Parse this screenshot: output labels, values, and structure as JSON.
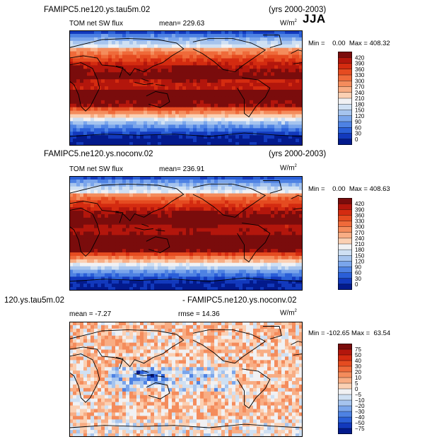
{
  "season": "JJA",
  "chart_data": [
    {
      "type": "heatmap",
      "case_title": "FAMIPC5.ne120.ys.tau5m.02",
      "years": "(yrs 2000-2003)",
      "variable": "TOM net SW flux",
      "stats_text": "mean=  229.63",
      "units_base": "W/m",
      "units_exp": "2",
      "min_label": "Min =",
      "min_value": "0.00",
      "max_label": "Max =",
      "max_value": "408.32",
      "colorbar": {
        "levels": [
          "420",
          "390",
          "360",
          "330",
          "300",
          "270",
          "240",
          "210",
          "180",
          "150",
          "120",
          "90",
          "60",
          "30",
          "0"
        ],
        "colors": [
          "#7a0c0c",
          "#b3160c",
          "#d42b10",
          "#e54b20",
          "#ef6a3a",
          "#f48c5c",
          "#f8ad84",
          "#fbd0b3",
          "#f1f1f3",
          "#cfe0f3",
          "#a6c4ee",
          "#7aa5eb",
          "#4e82e3",
          "#2a5fd8",
          "#1239bd",
          "#031a8c"
        ]
      }
    },
    {
      "type": "heatmap",
      "case_title": "FAMIPC5.ne120.ys.noconv.02",
      "years": "(yrs 2000-2003)",
      "variable": "TOM net SW flux",
      "stats_text": "mean=  236.91",
      "units_base": "W/m",
      "units_exp": "2",
      "min_label": "Min =",
      "min_value": "0.00",
      "max_label": "Max =",
      "max_value": "408.63",
      "colorbar": {
        "levels": [
          "420",
          "390",
          "360",
          "330",
          "300",
          "270",
          "240",
          "210",
          "180",
          "150",
          "120",
          "90",
          "60",
          "30",
          "0"
        ],
        "colors": [
          "#7a0c0c",
          "#b3160c",
          "#d42b10",
          "#e54b20",
          "#ef6a3a",
          "#f48c5c",
          "#f8ad84",
          "#fbd0b3",
          "#f1f1f3",
          "#cfe0f3",
          "#a6c4ee",
          "#7aa5eb",
          "#4e82e3",
          "#2a5fd8",
          "#1239bd",
          "#031a8c"
        ]
      }
    },
    {
      "type": "heatmap",
      "case_title_left": "120.ys.tau5m.02",
      "case_title_right": "- FAMIPC5.ne120.ys.noconv.02",
      "stats_text": "mean =  -7.27",
      "rmse_text": "rmse =  14.36",
      "units_base": "W/m",
      "units_exp": "2",
      "min_label": "Min =",
      "min_value": "-102.65",
      "max_label": "Max =",
      "max_value": "63.54",
      "colorbar": {
        "levels": [
          "75",
          "50",
          "40",
          "30",
          "20",
          "10",
          "5",
          "0",
          "−5",
          "−10",
          "−20",
          "−30",
          "−40",
          "−50",
          "−75"
        ],
        "colors": [
          "#7a0c0c",
          "#b3160c",
          "#d42b10",
          "#e54b20",
          "#ef6a3a",
          "#f48c5c",
          "#f8ad84",
          "#fbd0b3",
          "#f1f1f3",
          "#cfe0f3",
          "#a6c4ee",
          "#7aa5eb",
          "#4e82e3",
          "#2a5fd8",
          "#1239bd",
          "#031a8c"
        ]
      }
    }
  ]
}
